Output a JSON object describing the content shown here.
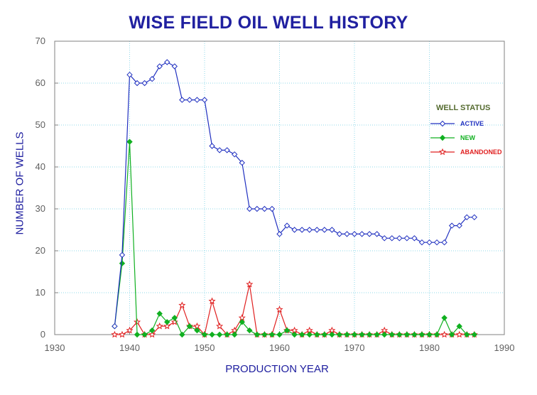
{
  "chart_data": {
    "type": "line",
    "title": "WISE FIELD OIL WELL HISTORY",
    "xlabel": "PRODUCTION YEAR",
    "ylabel": "NUMBER OF WELLS",
    "xlim": [
      1930,
      1990
    ],
    "ylim": [
      0,
      70
    ],
    "xticks": [
      "1930",
      "1940",
      "1950",
      "1960",
      "1970",
      "1980",
      "1990"
    ],
    "yticks": [
      "0",
      "10",
      "20",
      "30",
      "40",
      "50",
      "60",
      "70"
    ],
    "grid": true,
    "legend_title": "WELL STATUS",
    "legend_position": "right",
    "series": [
      {
        "name": "ACTIVE",
        "color": "#2030c0",
        "marker": "diamond-open",
        "x": [
          1938,
          1939,
          1940,
          1941,
          1942,
          1943,
          1944,
          1945,
          1946,
          1947,
          1948,
          1949,
          1950,
          1951,
          1952,
          1953,
          1954,
          1955,
          1956,
          1957,
          1958,
          1959,
          1960,
          1961,
          1962,
          1963,
          1964,
          1965,
          1966,
          1967,
          1968,
          1969,
          1970,
          1971,
          1972,
          1973,
          1974,
          1975,
          1976,
          1977,
          1978,
          1979,
          1980,
          1981,
          1982,
          1983,
          1984,
          1985,
          1986
        ],
        "values": [
          2,
          19,
          62,
          60,
          60,
          61,
          64,
          65,
          64,
          56,
          56,
          56,
          56,
          45,
          44,
          44,
          43,
          41,
          30,
          30,
          30,
          30,
          24,
          26,
          25,
          25,
          25,
          25,
          25,
          25,
          24,
          24,
          24,
          24,
          24,
          24,
          23,
          23,
          23,
          23,
          23,
          22,
          22,
          22,
          22,
          26,
          26,
          28,
          28
        ]
      },
      {
        "name": "NEW",
        "color": "#10b020",
        "marker": "diamond-filled",
        "x": [
          1938,
          1939,
          1940,
          1941,
          1942,
          1943,
          1944,
          1945,
          1946,
          1947,
          1948,
          1949,
          1950,
          1951,
          1952,
          1953,
          1954,
          1955,
          1956,
          1957,
          1958,
          1959,
          1960,
          1961,
          1962,
          1963,
          1964,
          1965,
          1966,
          1967,
          1968,
          1969,
          1970,
          1971,
          1972,
          1973,
          1974,
          1975,
          1976,
          1977,
          1978,
          1979,
          1980,
          1981,
          1982,
          1983,
          1984,
          1985,
          1986
        ],
        "values": [
          2,
          17,
          46,
          0,
          0,
          1,
          5,
          3,
          4,
          0,
          2,
          1,
          0,
          0,
          0,
          0,
          0,
          3,
          1,
          0,
          0,
          0,
          0,
          1,
          0,
          0,
          0,
          0,
          0,
          0,
          0,
          0,
          0,
          0,
          0,
          0,
          0,
          0,
          0,
          0,
          0,
          0,
          0,
          0,
          4,
          0,
          2,
          0,
          0
        ]
      },
      {
        "name": "ABANDONED",
        "color": "#e02020",
        "marker": "star-open",
        "x": [
          1938,
          1939,
          1940,
          1941,
          1942,
          1943,
          1944,
          1945,
          1946,
          1947,
          1948,
          1949,
          1950,
          1951,
          1952,
          1953,
          1954,
          1955,
          1956,
          1957,
          1958,
          1959,
          1960,
          1961,
          1962,
          1963,
          1964,
          1965,
          1966,
          1967,
          1968,
          1969,
          1970,
          1971,
          1972,
          1973,
          1974,
          1975,
          1976,
          1977,
          1978,
          1979,
          1980,
          1981,
          1982,
          1983,
          1984,
          1985,
          1986
        ],
        "values": [
          0,
          0,
          1,
          3,
          0,
          0,
          2,
          2,
          3,
          7,
          2,
          2,
          0,
          8,
          2,
          0,
          1,
          4,
          12,
          0,
          0,
          0,
          6,
          1,
          1,
          0,
          1,
          0,
          0,
          1,
          0,
          0,
          0,
          0,
          0,
          0,
          1,
          0,
          0,
          0,
          0,
          0,
          0,
          0,
          0,
          0,
          0,
          0,
          0
        ]
      }
    ]
  }
}
